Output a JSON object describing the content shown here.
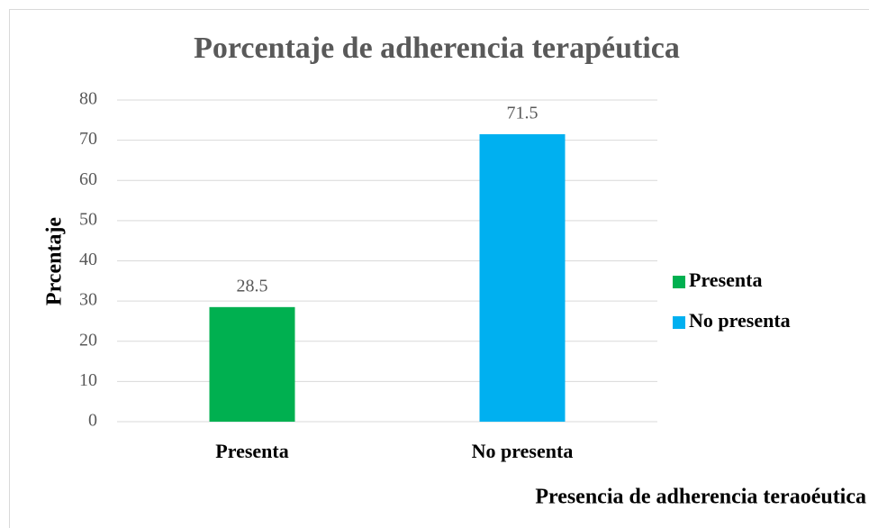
{
  "chart_data": {
    "type": "bar",
    "title": "Porcentaje de adherencia terapéutica",
    "y_label": "Prcentaje",
    "x_label": "Presencia de adherencia teraoéutica",
    "categories": [
      "Presenta",
      "No presenta"
    ],
    "values": [
      28.5,
      71.5
    ],
    "colors": [
      "#00b050",
      "#00b0f0"
    ],
    "ylim": [
      0,
      80
    ],
    "yticks": [
      0,
      10,
      20,
      30,
      40,
      50,
      60,
      70,
      80
    ],
    "grid": true,
    "legend": "right"
  }
}
